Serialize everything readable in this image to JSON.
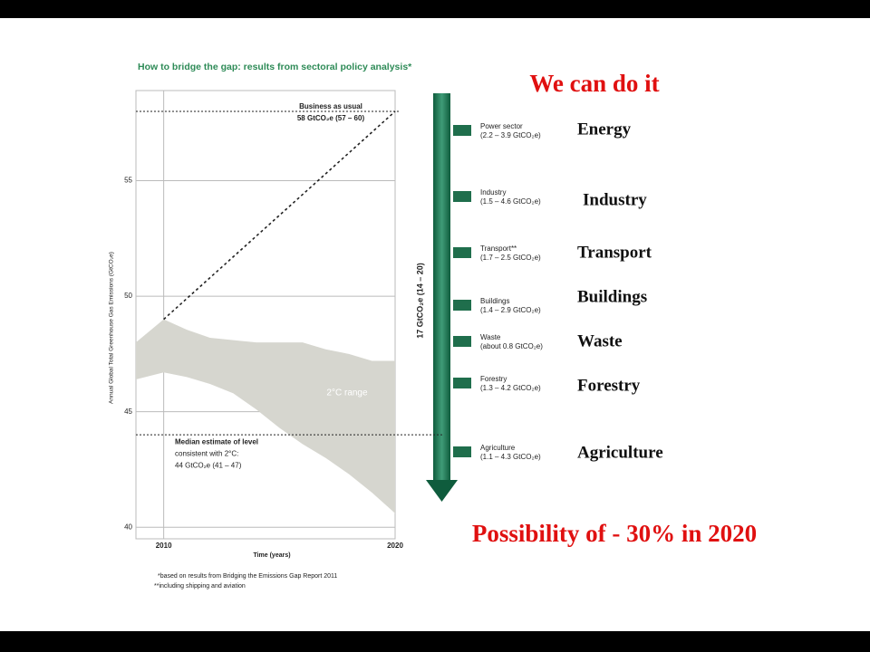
{
  "chart_data": {
    "type": "area-range",
    "title": "How to bridge the gap: results from sectoral policy analysis*",
    "x_label": "Time (years)",
    "y_label": "Annual Global Total Greenhouse Gas Emissions (GtCO₂e)",
    "x": [
      2008.8,
      2010,
      2011,
      2012,
      2013,
      2014,
      2015,
      2016,
      2017,
      2018,
      2019,
      2020
    ],
    "high": [
      48.0,
      49.0,
      48.55,
      48.2,
      48.1,
      48.0,
      48.0,
      48.0,
      47.7,
      47.5,
      47.2,
      47.2
    ],
    "low": [
      46.4,
      46.7,
      46.5,
      46.2,
      45.8,
      45.1,
      44.3,
      43.6,
      43.0,
      42.3,
      41.5,
      40.6
    ],
    "color": "#d6d6cf",
    "range_label": "2°C range",
    "bau_line": {
      "x": [
        2010,
        2020
      ],
      "values": [
        49,
        58
      ]
    },
    "reference_lines": [
      {
        "value": 58,
        "labels": [
          "Business as usual",
          "58 GtCO₂e (57 – 60)"
        ]
      },
      {
        "value": 44,
        "labels": [
          "Median estimate of level",
          "consistent with 2°C:",
          "44 GtCO₂e (41 – 47)"
        ]
      }
    ],
    "xlim": [
      2008.8,
      2020
    ],
    "ylim": [
      39.5,
      58.9
    ],
    "xticks": [
      2010,
      2020
    ],
    "yticks": [
      40,
      45,
      50,
      55
    ],
    "grid": true,
    "footnotes": [
      "*based on results from Bridging the Emissions Gap Report 2011",
      "**including shipping and aviation"
    ]
  },
  "slide": {
    "heading": "We can do it",
    "total_label": "17 GtCO₂e (14 – 20)",
    "sectors": [
      {
        "name": "Power sector",
        "range": "(2.2 – 3.9 GtCO₂e)",
        "label": "Energy"
      },
      {
        "name": "Industry",
        "range": "(1.5 – 4.6 GtCO₂e)",
        "label": "Industry"
      },
      {
        "name": "Transport**",
        "range": "(1.7 – 2.5 GtCO₂e)",
        "label": "Transport"
      },
      {
        "name": "Buildings",
        "range": "(1.4 – 2.9 GtCO₂e)",
        "label": "Buildings"
      },
      {
        "name": "Waste",
        "range": "(about 0.8 GtCO₂e)",
        "label": "Waste"
      },
      {
        "name": "Forestry",
        "range": "(1.3 – 4.2 GtCO₂e)",
        "label": "Forestry"
      },
      {
        "name": "Agriculture",
        "range": "(1.1 – 4.3 GtCO₂e)",
        "label": "Agriculture"
      }
    ],
    "conclusion": "Possibility of - 30% in 2020"
  }
}
